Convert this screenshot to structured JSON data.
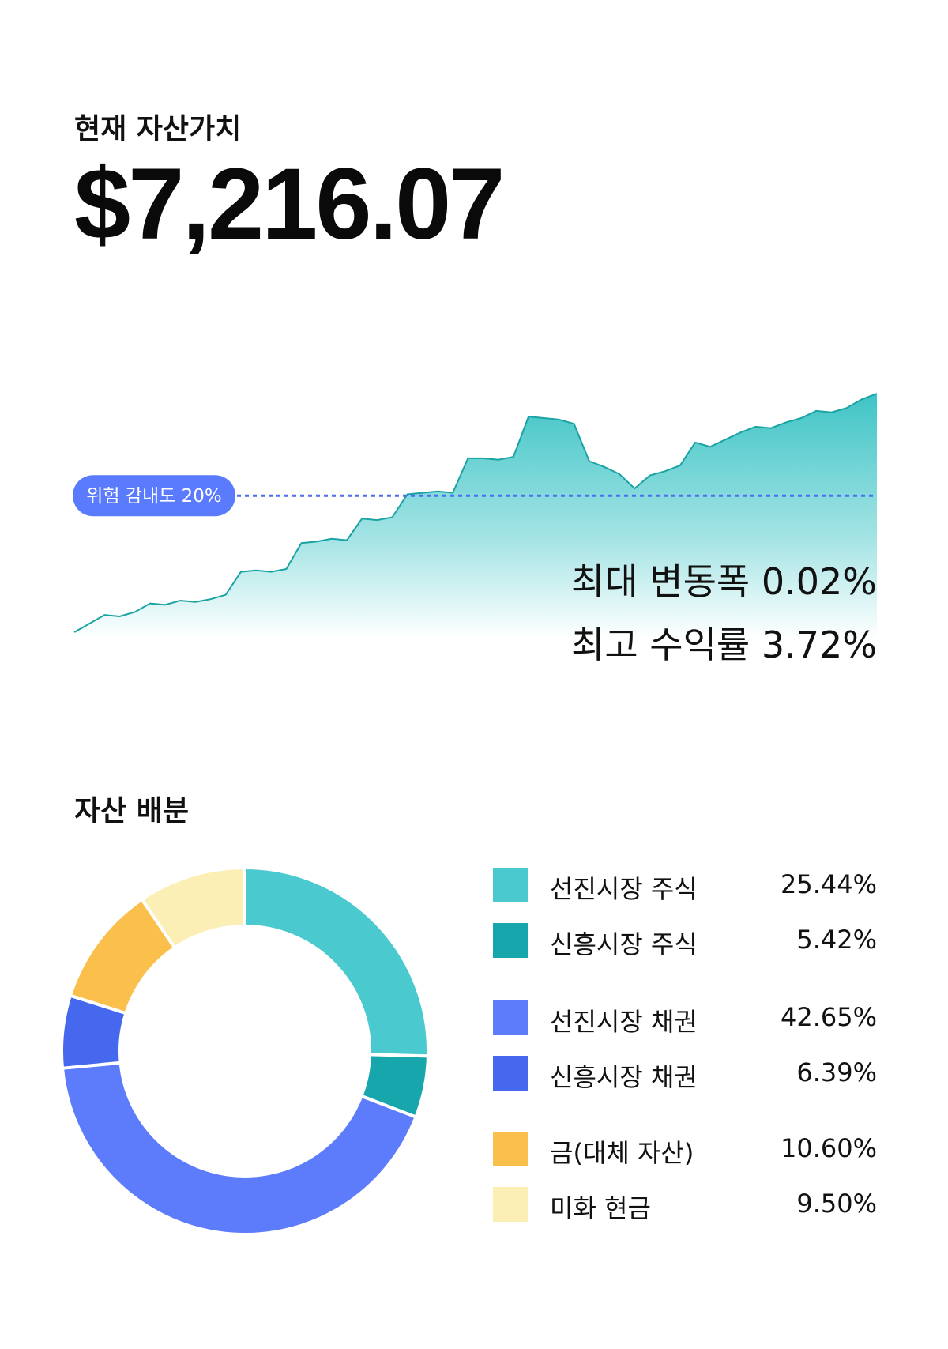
{
  "header": {
    "label": "현재 자산가치",
    "value": "$7,216.07"
  },
  "stats": {
    "max_drawdown": "최대 변동폭 0.02%",
    "max_return": "최고 수익률 3.72%"
  },
  "allocation_title": "자산 배분",
  "chart_data": [
    {
      "type": "area",
      "series": [
        {
          "values": [
            0.0,
            0.6,
            1.2,
            1.1,
            1.4,
            2.0,
            1.9,
            2.2,
            2.1,
            2.3,
            2.6,
            4.2,
            4.3,
            4.2,
            4.4,
            6.2,
            6.3,
            6.5,
            6.4,
            7.9,
            7.8,
            8.0,
            9.6,
            9.7,
            9.8,
            9.7,
            12.1,
            12.1,
            12.0,
            12.2,
            15.0,
            14.9,
            14.8,
            14.5,
            11.9,
            11.5,
            11.0,
            10.0,
            10.9,
            11.2,
            11.6,
            13.2,
            12.9,
            13.4,
            13.9,
            14.3,
            14.2,
            14.6,
            14.9,
            15.4,
            15.3,
            15.6,
            16.2,
            16.6
          ]
        }
      ],
      "annotation": {
        "label": "위험 감내도 20%",
        "level": 9.5
      },
      "colors": {
        "line": "#1aa3a3",
        "fill_top": "#3fc4c6",
        "fill_bottom": "#ffffff",
        "risk_line": "#4a6ff0",
        "risk_pill": "#5b7bff"
      }
    },
    {
      "type": "pie",
      "style": "donut",
      "slices": [
        {
          "name": "선진시장 주식",
          "value": 25.44,
          "label": "25.44%",
          "color": "#4ac9ce"
        },
        {
          "name": "신흥시장 주식",
          "value": 5.42,
          "label": "5.42%",
          "color": "#16a6ac"
        },
        {
          "name": "선진시장 채권",
          "value": 42.65,
          "label": "42.65%",
          "color": "#5c7cfb"
        },
        {
          "name": "신흥시장 채권",
          "value": 6.39,
          "label": "6.39%",
          "color": "#4568ee"
        },
        {
          "name": "금(대체 자산)",
          "value": 10.6,
          "label": "10.60%",
          "color": "#fbbf4b"
        },
        {
          "name": "미화 현금",
          "value": 9.5,
          "label": "9.50%",
          "color": "#fbefb5"
        }
      ]
    }
  ]
}
